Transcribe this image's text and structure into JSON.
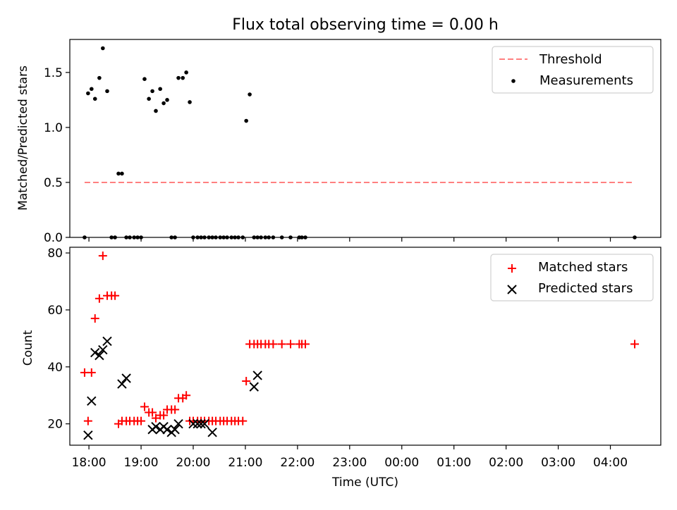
{
  "chart_data": [
    {
      "type": "scatter",
      "title": "Flux total observing time = 0.00 h",
      "xlabel": "",
      "ylabel": "Matched/Predicted stars",
      "xlim": [
        "17:38",
        "04:58"
      ],
      "ylim": [
        0,
        1.8
      ],
      "yticks": [
        0.0,
        0.5,
        1.0,
        1.5
      ],
      "ytick_labels": [
        "0.0",
        "0.5",
        "1.0",
        "1.5"
      ],
      "legend": {
        "placement": "upper right",
        "entries": [
          "Threshold",
          "Measurements"
        ]
      },
      "colors": {
        "threshold": "#ff8080",
        "measurements": "#000000"
      },
      "series": [
        {
          "name": "Threshold",
          "kind": "dashed-line",
          "x": [
            "17:55",
            "04:25"
          ],
          "y": [
            0.5,
            0.5
          ]
        },
        {
          "name": "Measurements",
          "kind": "points",
          "x": [
            "17:55",
            "17:59",
            "18:03",
            "18:07",
            "18:12",
            "18:16",
            "18:21",
            "18:26",
            "18:30",
            "18:34",
            "18:38",
            "18:43",
            "18:47",
            "18:52",
            "18:56",
            "19:00",
            "19:04",
            "19:09",
            "19:13",
            "19:17",
            "19:22",
            "19:26",
            "19:30",
            "19:35",
            "19:39",
            "19:43",
            "19:48",
            "19:52",
            "19:56",
            "20:00",
            "20:05",
            "20:09",
            "20:13",
            "20:18",
            "20:22",
            "20:26",
            "20:31",
            "20:35",
            "20:39",
            "20:44",
            "20:48",
            "20:52",
            "20:57",
            "21:01",
            "21:05",
            "21:10",
            "21:14",
            "21:18",
            "21:23",
            "21:27",
            "21:32",
            "21:42",
            "21:52",
            "22:02",
            "22:05",
            "22:09",
            "04:28"
          ],
          "y": [
            0,
            1.31,
            1.35,
            1.26,
            1.45,
            1.72,
            1.33,
            0,
            0,
            0.58,
            0.58,
            0,
            0,
            0,
            0,
            0,
            1.44,
            1.26,
            1.33,
            1.15,
            1.35,
            1.22,
            1.25,
            0,
            0,
            1.45,
            1.45,
            1.5,
            1.23,
            0,
            0,
            0,
            0,
            0,
            0,
            0,
            0,
            0,
            0,
            0,
            0,
            0,
            0,
            1.06,
            1.3,
            0,
            0,
            0,
            0,
            0,
            0,
            0,
            0,
            0,
            0,
            0,
            0
          ]
        }
      ]
    },
    {
      "type": "scatter",
      "title": "",
      "xlabel": "Time (UTC)",
      "ylabel": "Count",
      "xlim": [
        "17:38",
        "04:58"
      ],
      "ylim": [
        12.5,
        82
      ],
      "yticks": [
        20,
        40,
        60,
        80
      ],
      "ytick_labels": [
        "20",
        "40",
        "60",
        "80"
      ],
      "xticks": [
        "18:00",
        "19:00",
        "20:00",
        "21:00",
        "22:00",
        "23:00",
        "00:00",
        "01:00",
        "02:00",
        "03:00",
        "04:00"
      ],
      "legend": {
        "placement": "upper right",
        "entries": [
          "Matched stars",
          "Predicted stars"
        ]
      },
      "colors": {
        "matched": "#ff0000",
        "predicted": "#000000"
      },
      "series": [
        {
          "name": "Matched stars",
          "marker": "plus",
          "x": [
            "17:55",
            "17:59",
            "18:03",
            "18:07",
            "18:12",
            "18:16",
            "18:21",
            "18:26",
            "18:30",
            "18:34",
            "18:38",
            "18:43",
            "18:47",
            "18:52",
            "18:56",
            "19:00",
            "19:04",
            "19:09",
            "19:13",
            "19:17",
            "19:22",
            "19:26",
            "19:30",
            "19:35",
            "19:39",
            "19:43",
            "19:48",
            "19:52",
            "19:56",
            "20:00",
            "20:05",
            "20:09",
            "20:13",
            "20:18",
            "20:22",
            "20:26",
            "20:31",
            "20:35",
            "20:39",
            "20:44",
            "20:48",
            "20:52",
            "20:57",
            "21:01",
            "21:05",
            "21:10",
            "21:14",
            "21:18",
            "21:23",
            "21:27",
            "21:32",
            "21:42",
            "21:52",
            "22:02",
            "22:05",
            "22:09",
            "04:28"
          ],
          "y": [
            38,
            21,
            38,
            57,
            64,
            79,
            65,
            65,
            65,
            20,
            21,
            21,
            21,
            21,
            21,
            21,
            26,
            24,
            24,
            22,
            23,
            23,
            25,
            25,
            25,
            29,
            29,
            30,
            21,
            21,
            21,
            21,
            21,
            21,
            21,
            21,
            21,
            21,
            21,
            21,
            21,
            21,
            21,
            35,
            48,
            48,
            48,
            48,
            48,
            48,
            48,
            48,
            48,
            48,
            48,
            48,
            48
          ]
        },
        {
          "name": "Predicted stars",
          "marker": "x",
          "x": [
            "17:59",
            "18:03",
            "18:07",
            "18:12",
            "18:16",
            "18:21",
            "18:38",
            "18:43",
            "19:13",
            "19:17",
            "19:22",
            "19:26",
            "19:30",
            "19:35",
            "19:39",
            "19:43",
            "20:00",
            "20:05",
            "20:09",
            "20:13",
            "20:22",
            "21:10",
            "21:14"
          ],
          "y": [
            16,
            28,
            45,
            44,
            46,
            49,
            34,
            36,
            18,
            19,
            18,
            19,
            18,
            17,
            18,
            20,
            20,
            20,
            20,
            20,
            17,
            33,
            37
          ]
        }
      ]
    }
  ]
}
